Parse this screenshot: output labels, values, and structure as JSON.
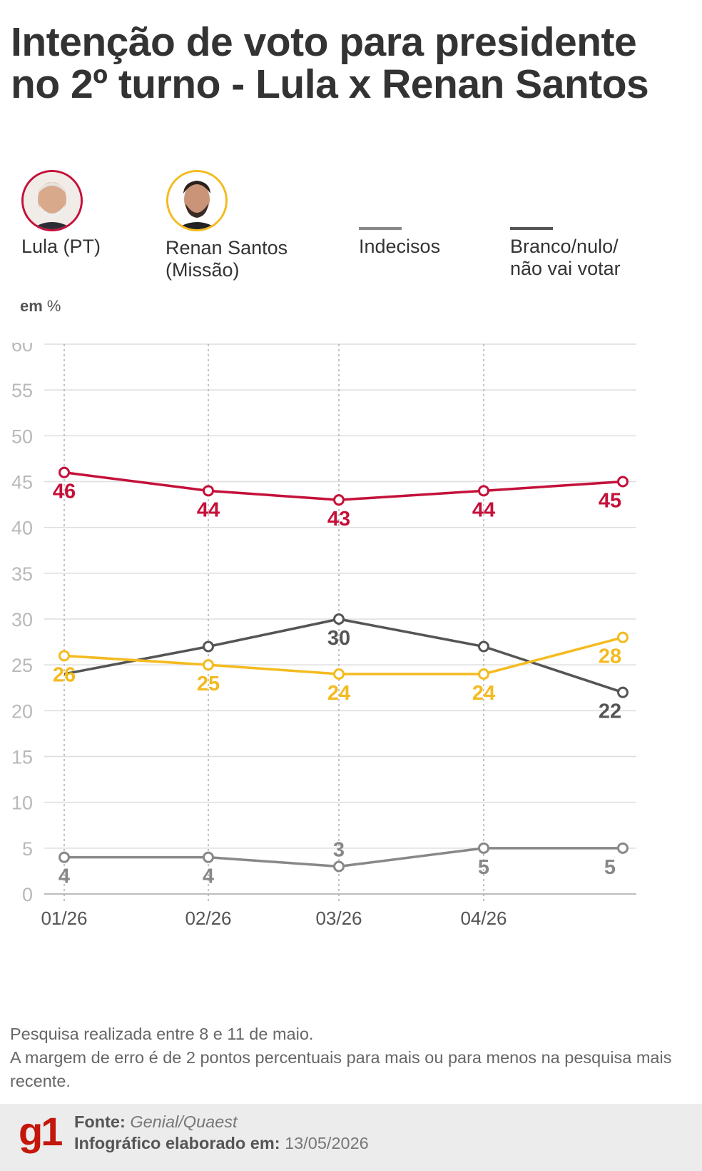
{
  "header": {
    "title": "Intenção de voto para presidente no 2º turno - Lula x Renan Santos"
  },
  "legend": [
    {
      "label": "Lula (PT)",
      "color": "#c4113a",
      "icon": "lula-portrait"
    },
    {
      "label": "Renan Santos (Missão)",
      "color": "#f4bb20",
      "icon": "renan-santos-portrait"
    },
    {
      "label": "Indecisos",
      "color": "#888888"
    },
    {
      "label": "Branco/nulo/\nnão vai votar",
      "color": "#555555"
    }
  ],
  "unit_prefix": "em",
  "unit_suffix": "%",
  "chart_data": {
    "type": "line",
    "categories": [
      "01/26",
      "02/26",
      "03/26",
      "04/26",
      ""
    ],
    "ylim": [
      0,
      60
    ],
    "yticks": [
      0,
      5,
      10,
      15,
      20,
      25,
      30,
      35,
      40,
      45,
      50,
      55,
      60
    ],
    "grid": true,
    "series": [
      {
        "name": "Lula (PT)",
        "color": "#c4113a",
        "values": [
          46,
          44,
          43,
          44,
          45
        ],
        "labels": [
          "46",
          "44",
          "43",
          "44",
          "45"
        ],
        "label_pos": [
          "below",
          "below",
          "below",
          "below",
          "below"
        ]
      },
      {
        "name": "Renan Santos (Missão)",
        "color": "#f4bb20",
        "values": [
          26,
          25,
          24,
          24,
          28
        ],
        "labels": [
          "26",
          "25",
          "24",
          "24",
          "28"
        ],
        "label_pos": [
          "below",
          "below",
          "below",
          "below",
          "below"
        ]
      },
      {
        "name": "Indecisos",
        "color": "#888888",
        "values": [
          4,
          4,
          3,
          5,
          5
        ],
        "labels": [
          "4",
          "4",
          "3",
          "5",
          "5"
        ],
        "label_pos": [
          "below",
          "below",
          "above",
          "below",
          "below"
        ]
      },
      {
        "name": "Branco/nulo/não vai votar",
        "color": "#555555",
        "values": [
          24,
          27,
          30,
          27,
          22
        ],
        "labels": [
          "",
          "",
          "30",
          "",
          "22"
        ],
        "label_pos": [
          "below",
          "below",
          "below",
          "below",
          "below"
        ],
        "first_point_marker": false
      }
    ]
  },
  "notes": {
    "line1": "Pesquisa realizada entre 8 e 11 de maio.",
    "line2": "A margem de erro é de 2 pontos percentuais para mais ou para menos na pesquisa mais recente."
  },
  "footer": {
    "logo": "g1",
    "source_label": "Fonte:",
    "source_value": "Genial/Quaest",
    "date_label": "Infográfico elaborado em:",
    "date_value": "13/05/2026"
  }
}
